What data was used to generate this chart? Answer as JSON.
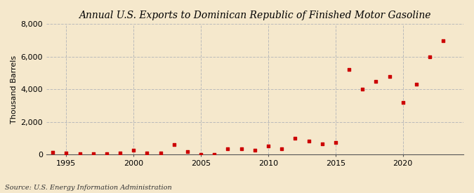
{
  "title": "Annual U.S. Exports to Dominican Republic of Finished Motor Gasoline",
  "ylabel": "Thousand Barrels",
  "source_text": "Source: U.S. Energy Information Administration",
  "background_color": "#f5e8cc",
  "plot_background_color": "#f5e8cc",
  "marker_color": "#cc0000",
  "years": [
    1994,
    1995,
    1996,
    1997,
    1998,
    1999,
    2000,
    2001,
    2002,
    2003,
    2004,
    2005,
    2006,
    2007,
    2008,
    2009,
    2010,
    2011,
    2012,
    2013,
    2014,
    2015,
    2016,
    2017,
    2018,
    2019,
    2020,
    2021,
    2022,
    2023
  ],
  "values": [
    150,
    120,
    80,
    50,
    80,
    100,
    280,
    100,
    120,
    600,
    200,
    10,
    20,
    380,
    380,
    280,
    550,
    380,
    1000,
    850,
    650,
    750,
    5200,
    4000,
    4500,
    4800,
    3200,
    4300,
    6000,
    7000
  ],
  "xlim": [
    1993.5,
    2024.5
  ],
  "ylim": [
    0,
    8000
  ],
  "yticks": [
    0,
    2000,
    4000,
    6000,
    8000
  ],
  "xticks": [
    1995,
    2000,
    2005,
    2010,
    2015,
    2020
  ],
  "grid_color": "#bbbbbb",
  "title_fontsize": 10,
  "axis_fontsize": 8,
  "source_fontsize": 7
}
